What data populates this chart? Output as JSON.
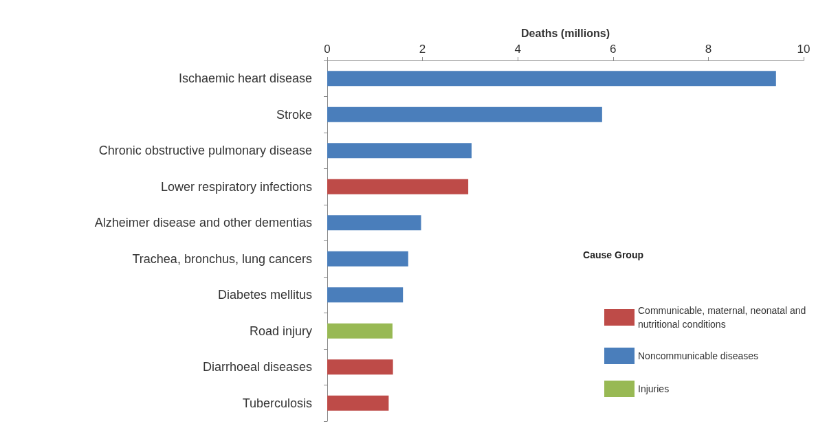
{
  "chart_data": {
    "type": "bar",
    "orientation": "horizontal",
    "xlabel": "Deaths (millions)",
    "legend_title": "Cause Group",
    "legend": "bottom right",
    "grid": false,
    "categories": [
      "Ischaemic heart disease",
      "Stroke",
      "Chronic obstructive pulmonary disease",
      "Lower respiratory infections",
      "Alzheimer disease and other dementias",
      "Trachea, bronchus, lung cancers",
      "Diabetes mellitus",
      "Road injury",
      "Diarrhoeal diseases",
      "Tuberculosis"
    ],
    "xlim": [
      0,
      10
    ],
    "xticks": [
      0,
      2,
      4,
      6,
      8,
      10
    ],
    "series": [
      {
        "name": "Communicable, maternal, neonatal and nutritional conditions",
        "color": "#be4b48",
        "values": [
          null,
          null,
          null,
          2.96,
          null,
          null,
          null,
          null,
          1.38,
          1.29
        ]
      },
      {
        "name": "Noncommunicable diseases",
        "color": "#4a7ebb",
        "values": [
          9.42,
          5.77,
          3.03,
          null,
          1.97,
          1.7,
          1.59,
          null,
          null,
          null
        ]
      },
      {
        "name": "Injuries",
        "color": "#98b954",
        "values": [
          null,
          null,
          null,
          null,
          null,
          null,
          null,
          1.37,
          null,
          null
        ]
      }
    ]
  }
}
